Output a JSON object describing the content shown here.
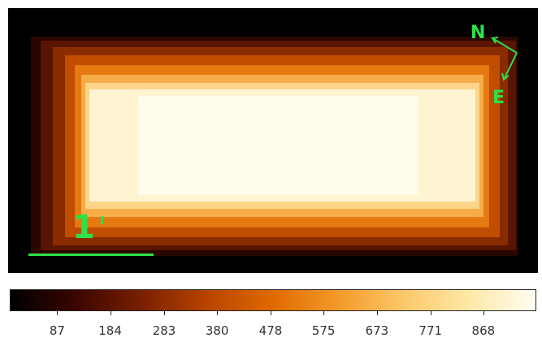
{
  "image": {
    "description_colors": {
      "background": "#000000",
      "low": "#3a0a00",
      "mid": "#c24a00",
      "high": "#ffb347",
      "peak": "#fffbe6"
    }
  },
  "compass": {
    "north_label": "N",
    "east_label": "E",
    "color": "#2ee04a"
  },
  "scale_bar": {
    "label": "1",
    "unit_mark": "'",
    "color": "#2ee04a"
  },
  "colorbar": {
    "ticks": [
      "87",
      "184",
      "283",
      "380",
      "478",
      "575",
      "673",
      "771",
      "868"
    ],
    "tick_values": [
      87,
      184,
      283,
      380,
      478,
      575,
      673,
      771,
      868
    ],
    "min": 0,
    "max": 965,
    "colormap": [
      "#000000",
      "#3b0600",
      "#7a1f00",
      "#b84400",
      "#e06a00",
      "#f39a2a",
      "#fbc86a",
      "#fde9a8",
      "#fffdf2"
    ]
  }
}
